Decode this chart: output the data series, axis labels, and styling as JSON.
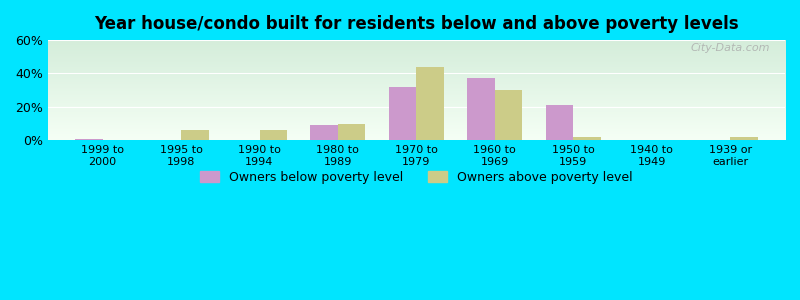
{
  "title": "Year house/condo built for residents below and above poverty levels",
  "categories": [
    "1999 to\n2000",
    "1995 to\n1998",
    "1990 to\n1994",
    "1980 to\n1989",
    "1970 to\n1979",
    "1960 to\n1969",
    "1950 to\n1959",
    "1940 to\n1949",
    "1939 or\nearlier"
  ],
  "below_poverty": [
    0.5,
    0,
    0,
    9,
    32,
    37,
    21,
    0,
    0
  ],
  "above_poverty": [
    0,
    6,
    6,
    10,
    44,
    30,
    2,
    0,
    2
  ],
  "below_color": "#cc99cc",
  "above_color": "#cccc88",
  "ylim": [
    0,
    60
  ],
  "yticks": [
    0,
    20,
    40,
    60
  ],
  "ytick_labels": [
    "0%",
    "20%",
    "40%",
    "60%"
  ],
  "background_top": "#d4edda",
  "background_bottom": "#f5fff5",
  "outer_bg": "#00e5ff",
  "bar_width": 0.35,
  "legend_below": "Owners below poverty level",
  "legend_above": "Owners above poverty level",
  "watermark": "City-Data.com",
  "xlim_left": -0.7,
  "xlim_right": 8.7
}
